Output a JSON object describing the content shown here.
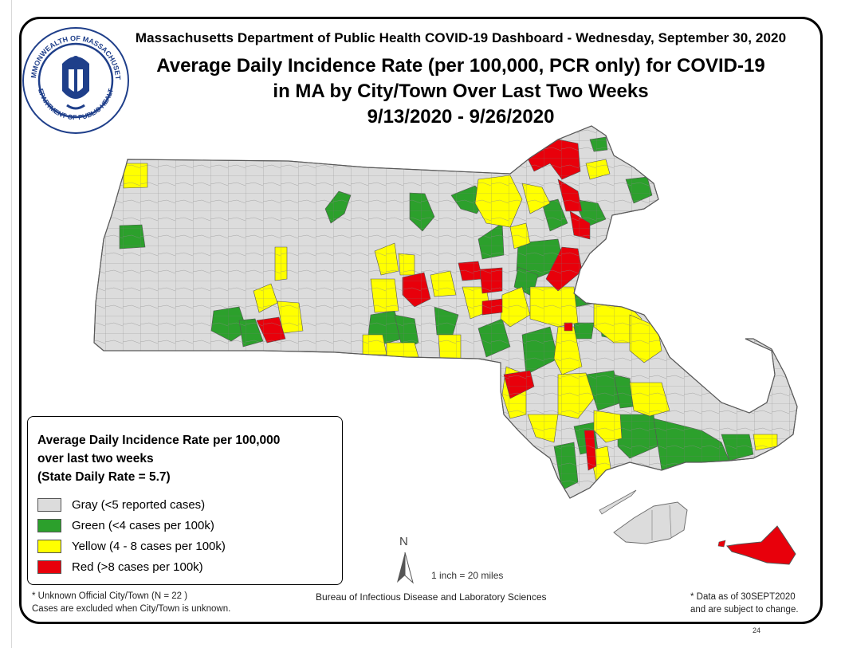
{
  "header": {
    "dashboard": "Massachusetts Department of Public Health COVID-19 Dashboard - Wednesday, September 30, 2020",
    "title_line1": "Average Daily Incidence Rate (per 100,000, PCR only) for COVID-19",
    "title_line2": "in MA by City/Town Over Last Two Weeks",
    "date_range": "9/13/2020 - 9/26/2020"
  },
  "seal": {
    "text_top": "COMMONWEALTH OF MASSACHUSETTS",
    "text_bottom": "DEPARTMENT OF PUBLIC HEALTH",
    "icon": "state-seal-icon"
  },
  "legend": {
    "title_line1": "Average Daily Incidence Rate per 100,000",
    "title_line2": "over last two weeks",
    "title_line3": "(State Daily Rate = 5.7)",
    "items": [
      {
        "label": "Gray (<5 reported cases)",
        "color": "#dcdcdc"
      },
      {
        "label": "Green (<4 cases per 100k)",
        "color": "#2ca02c"
      },
      {
        "label": "Yellow (4 - 8 cases per 100k)",
        "color": "#ffff00"
      },
      {
        "label": "Red (>8 cases per 100k)",
        "color": "#e8000b"
      }
    ]
  },
  "notes": {
    "unknown_line1": "* Unknown Official City/Town (N = 22 )",
    "unknown_line2": "Cases are excluded when City/Town is unknown.",
    "bureau": "Bureau of Infectious Disease and Laboratory Sciences",
    "data_as_of_line1": "* Data as of 30SEPT2020",
    "data_as_of_line2": "and are subject to change."
  },
  "map": {
    "north_label": "N",
    "north_icon": "north-arrow-icon",
    "scale": "1 inch = 20 miles",
    "colors": {
      "gray": "#dcdcdc",
      "green": "#2ca02c",
      "yellow": "#ffff00",
      "red": "#e8000b",
      "border": "#6e6e6e"
    }
  },
  "page_number": "24"
}
